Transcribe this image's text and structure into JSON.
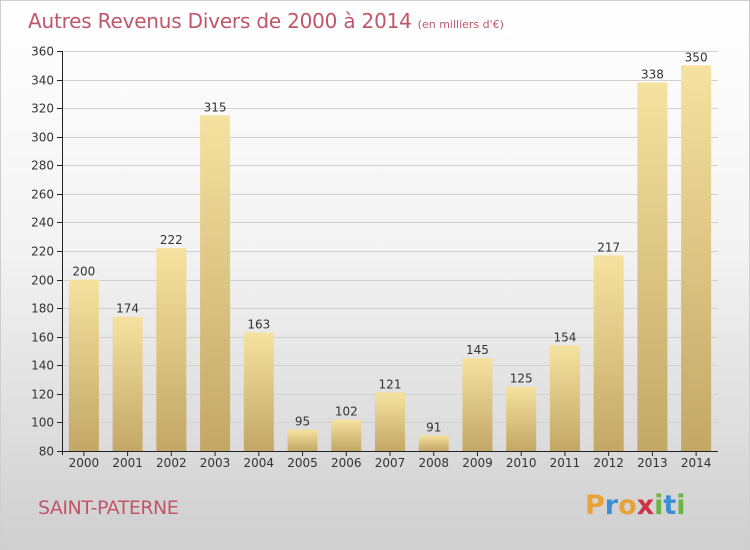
{
  "title": "Autres Revenus Divers de 2000 à 2014",
  "subtitle": "(en milliers d'€)",
  "location": "SAINT-PATERNE",
  "brand": {
    "text": "Proxiti",
    "letters": [
      {
        "char": "P",
        "color": "#e8a23a"
      },
      {
        "char": "r",
        "color": "#3a8fd6"
      },
      {
        "char": "o",
        "color": "#e8a23a"
      },
      {
        "char": "x",
        "color": "#cc3344"
      },
      {
        "char": "i",
        "color": "#6cb33f"
      },
      {
        "char": "t",
        "color": "#3a8fd6"
      },
      {
        "char": "i",
        "color": "#6cb33f"
      }
    ]
  },
  "colors": {
    "title": "#c0566a",
    "bar_top": "#f6e2a0",
    "bar_bottom": "#c3a767",
    "axis": "#222222",
    "grid": "#d0d0d0"
  },
  "chart_data": {
    "type": "bar",
    "categories": [
      "2000",
      "2001",
      "2002",
      "2003",
      "2004",
      "2005",
      "2006",
      "2007",
      "2008",
      "2009",
      "2010",
      "2011",
      "2012",
      "2013",
      "2014"
    ],
    "values": [
      200,
      174,
      222,
      315,
      163,
      95,
      102,
      121,
      91,
      145,
      125,
      154,
      217,
      338,
      350
    ],
    "ylim": [
      80,
      360
    ],
    "yticks": [
      80,
      100,
      120,
      140,
      160,
      180,
      200,
      220,
      240,
      260,
      280,
      300,
      320,
      340,
      360
    ],
    "grid": true,
    "legend": "none"
  }
}
